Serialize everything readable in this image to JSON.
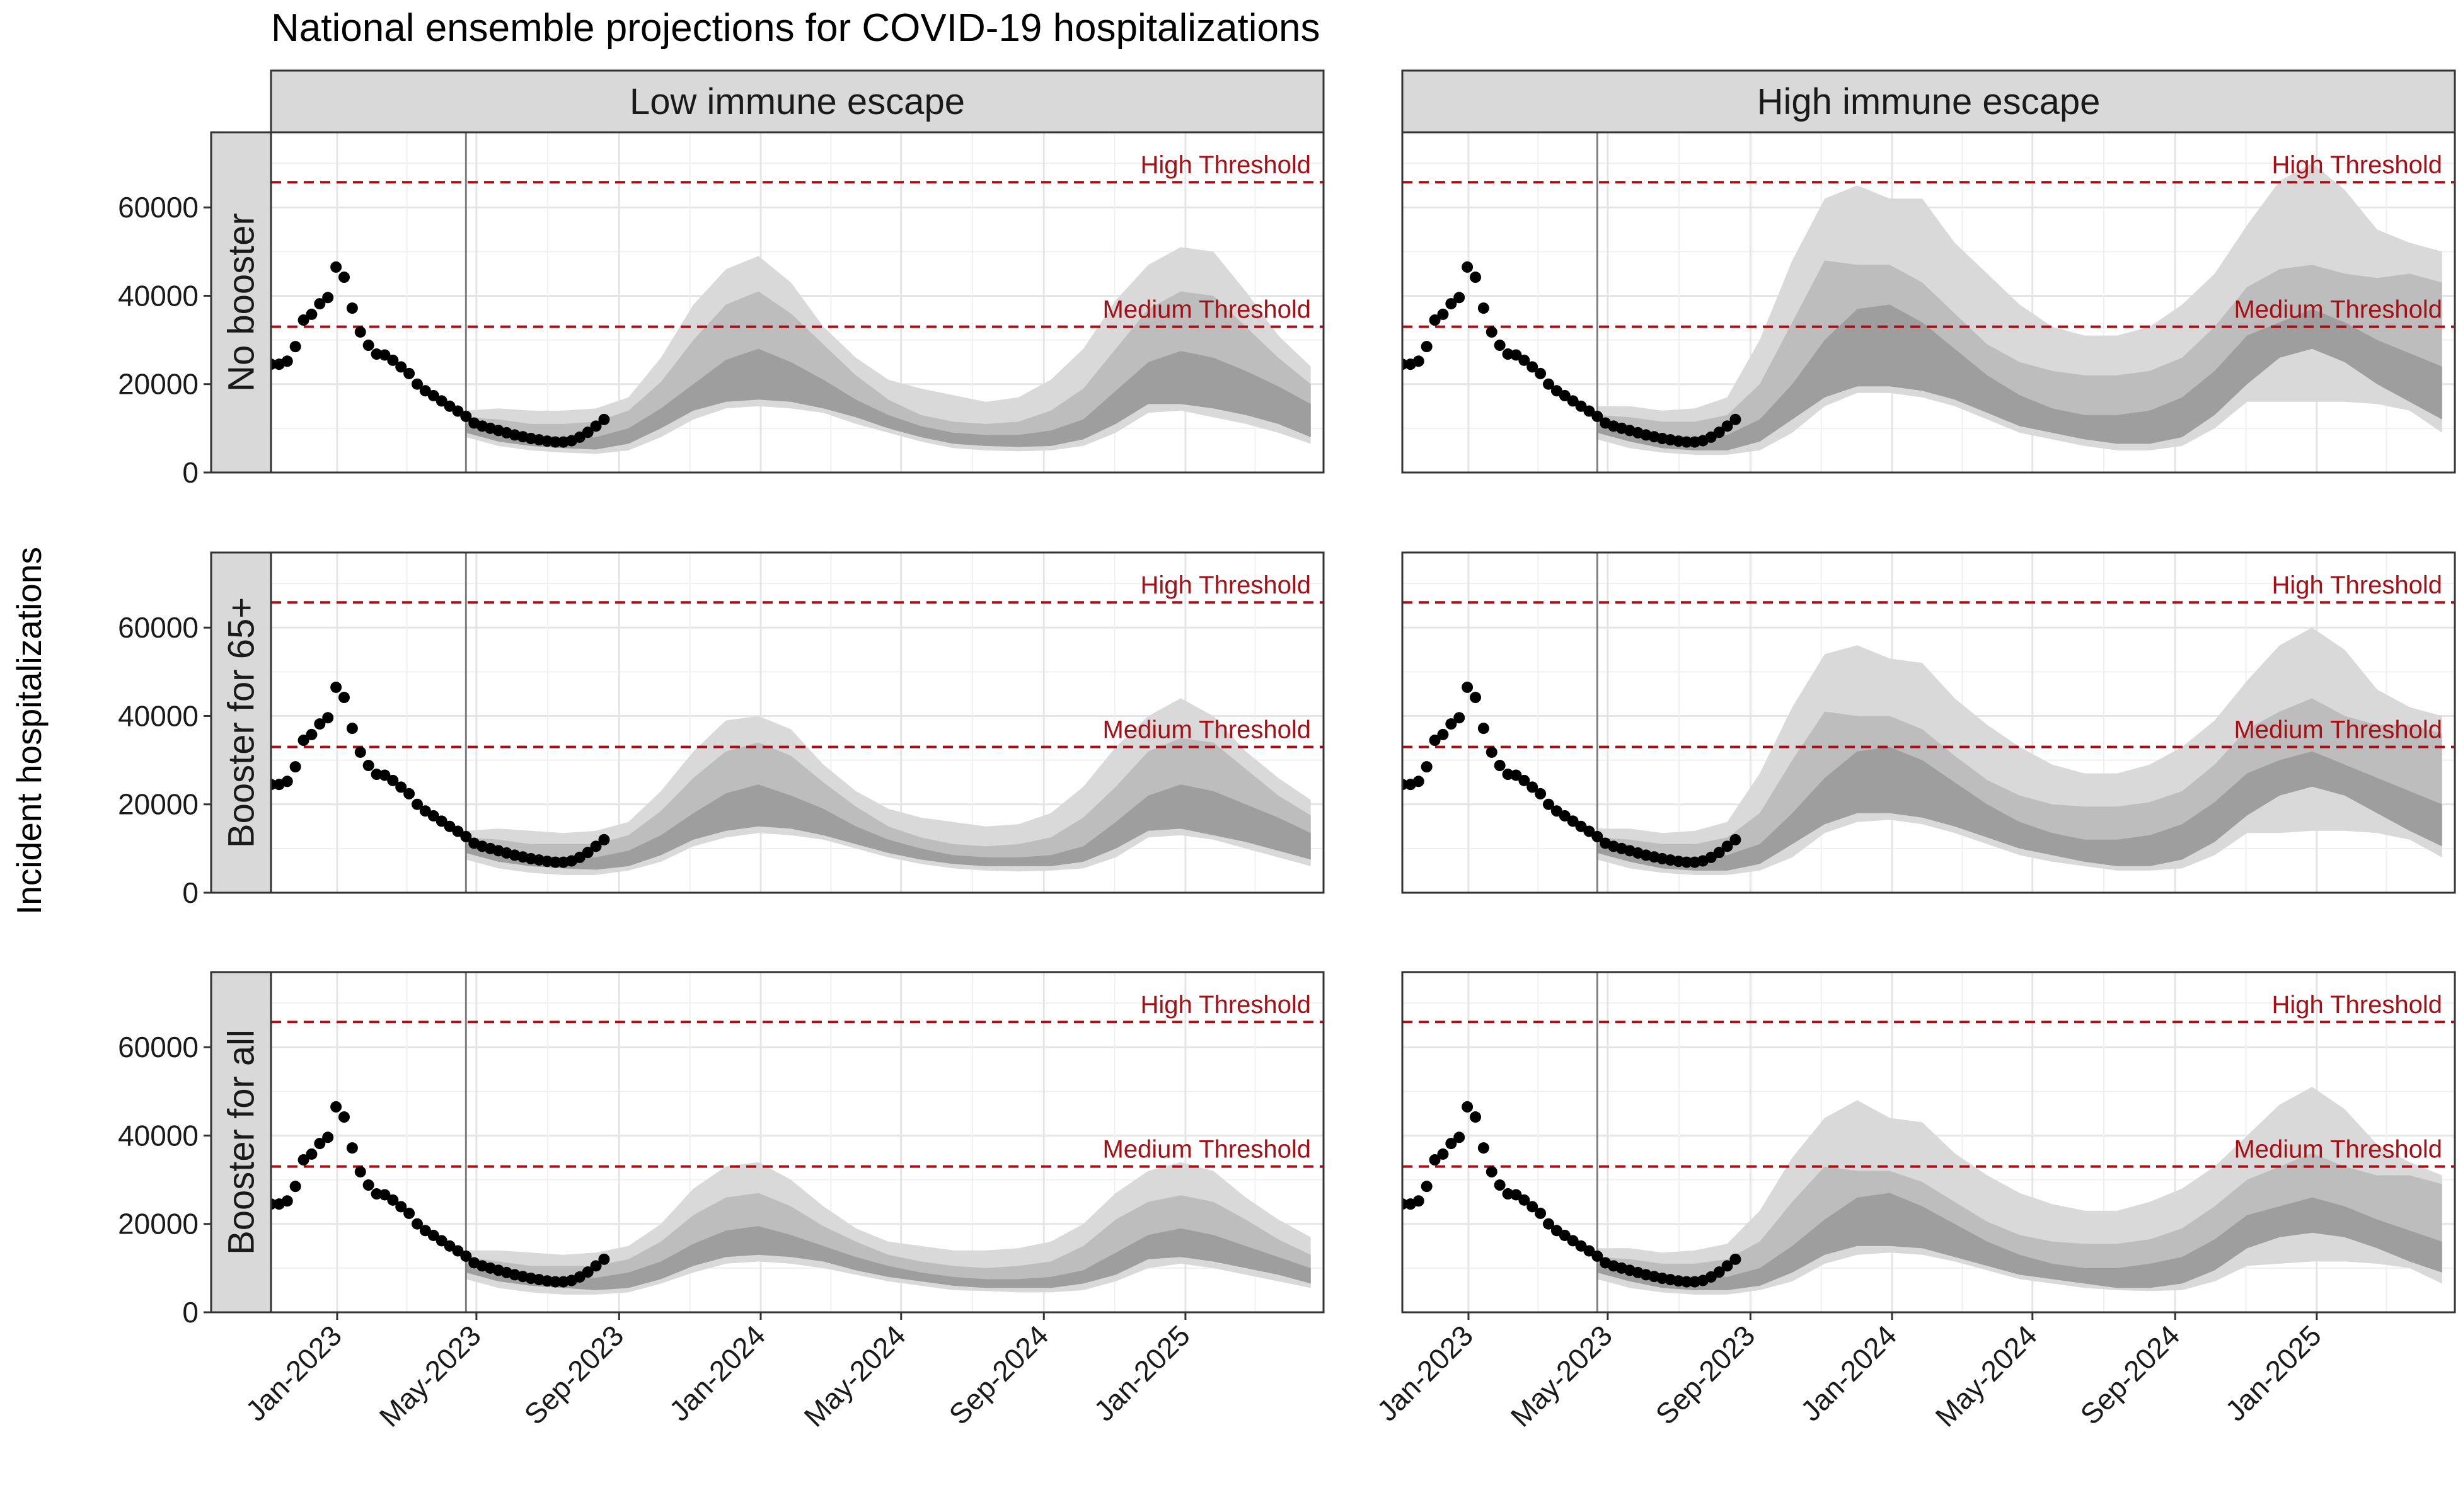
{
  "chart_data": {
    "type": "area",
    "title": "National ensemble projections for COVID-19 hospitalizations",
    "ylabel": "Incident hospitalizations",
    "xlabel": "",
    "facet_columns": [
      "Low immune escape",
      "High immune escape"
    ],
    "facet_rows": [
      "No booster",
      "Booster for 65+",
      "Booster for all"
    ],
    "x_ticks": [
      "Jan-2023",
      "May-2023",
      "Sep-2023",
      "Jan-2024",
      "May-2024",
      "Sep-2024",
      "Jan-2025"
    ],
    "x_tick_dates": [
      "2023-01-01",
      "2023-05-01",
      "2023-09-01",
      "2024-01-01",
      "2024-05-01",
      "2024-09-01",
      "2025-01-01"
    ],
    "xlim": [
      "2022-11-05",
      "2025-04-30"
    ],
    "y_ticks": [
      "0",
      "20000",
      "40000",
      "60000"
    ],
    "ylim": [
      0,
      77000
    ],
    "grid": true,
    "projection_start": "2023-04-22",
    "data_start": "2022-11-05",
    "thresholds": [
      {
        "label": "High Threshold",
        "value": 65700,
        "color": "#a50f15"
      },
      {
        "label": "Medium Threshold",
        "value": 33000,
        "color": "#a50f15"
      }
    ],
    "band_colors": {
      "outer": "#d9d9d9",
      "middle": "#bdbdbd",
      "inner": "#9e9e9e",
      "points": "#000000",
      "projection_line": "#7f7f7f"
    },
    "observed": {
      "dates": [
        "2022-11-05",
        "2022-11-12",
        "2022-11-19",
        "2022-11-26",
        "2022-12-03",
        "2022-12-10",
        "2022-12-17",
        "2022-12-24",
        "2022-12-31",
        "2023-01-07",
        "2023-01-14",
        "2023-01-21",
        "2023-01-28",
        "2023-02-04",
        "2023-02-11",
        "2023-02-18",
        "2023-02-25",
        "2023-03-04",
        "2023-03-11",
        "2023-03-18",
        "2023-03-25",
        "2023-04-01",
        "2023-04-08",
        "2023-04-15",
        "2023-04-22",
        "2023-04-29",
        "2023-05-06",
        "2023-05-13",
        "2023-05-20",
        "2023-05-27",
        "2023-06-03",
        "2023-06-10",
        "2023-06-17",
        "2023-06-24",
        "2023-07-01",
        "2023-07-08",
        "2023-07-15",
        "2023-07-22",
        "2023-07-29",
        "2023-08-05",
        "2023-08-12",
        "2023-08-19"
      ],
      "values": [
        24500,
        24500,
        25200,
        28500,
        34500,
        35800,
        38200,
        39600,
        46500,
        44200,
        37200,
        31800,
        28800,
        26800,
        26600,
        25400,
        23900,
        22400,
        20000,
        18500,
        17400,
        16200,
        15000,
        13900,
        12700,
        11200,
        10500,
        10000,
        9500,
        9000,
        8500,
        8100,
        7700,
        7400,
        7100,
        6900,
        6900,
        7200,
        8000,
        9100,
        10500,
        12000
      ]
    },
    "projection_weeks": [
      "2023-04-22",
      "2023-05-20",
      "2023-06-17",
      "2023-07-15",
      "2023-08-12",
      "2023-09-09",
      "2023-10-07",
      "2023-11-04",
      "2023-12-02",
      "2023-12-30",
      "2024-01-27",
      "2024-02-24",
      "2024-03-23",
      "2024-04-20",
      "2024-05-18",
      "2024-06-15",
      "2024-07-13",
      "2024-08-10",
      "2024-09-07",
      "2024-10-05",
      "2024-11-02",
      "2024-11-30",
      "2024-12-28",
      "2025-01-25",
      "2025-02-22",
      "2025-03-22",
      "2025-04-19"
    ],
    "panels": [
      {
        "row": "No booster",
        "column": "Low immune escape",
        "outer_low": [
          8000,
          6000,
          5000,
          4500,
          4200,
          5000,
          8000,
          12000,
          14500,
          15000,
          14500,
          13500,
          11000,
          9000,
          7000,
          5500,
          5000,
          4800,
          5000,
          6000,
          9000,
          13500,
          14000,
          12500,
          11000,
          9000,
          6500
        ],
        "mid_low": [
          9000,
          7000,
          6000,
          5500,
          5200,
          6500,
          10000,
          14000,
          16000,
          16500,
          16000,
          14500,
          12500,
          10000,
          8000,
          6500,
          6000,
          5800,
          6000,
          7500,
          11000,
          15500,
          15500,
          14500,
          13000,
          11000,
          8000
        ],
        "median": [
          11000,
          9500,
          8500,
          8000,
          8000,
          10000,
          14500,
          20000,
          25500,
          28000,
          25000,
          21000,
          16500,
          13000,
          10500,
          9000,
          8500,
          8500,
          9500,
          12000,
          18500,
          25000,
          27500,
          26000,
          23000,
          19500,
          15500
        ],
        "mid_high": [
          12500,
          12000,
          11000,
          11000,
          11500,
          14000,
          20500,
          30000,
          38000,
          41000,
          36000,
          29000,
          22000,
          16500,
          13000,
          11500,
          11000,
          11500,
          14000,
          19000,
          28000,
          37000,
          41000,
          40000,
          33000,
          26000,
          20000
        ],
        "outer_high": [
          14000,
          14500,
          14000,
          14000,
          14500,
          17000,
          26000,
          38000,
          46000,
          49000,
          43000,
          33000,
          26000,
          21000,
          19000,
          17500,
          16000,
          17000,
          21000,
          28000,
          39000,
          47000,
          51000,
          50000,
          41000,
          31000,
          24000
        ]
      },
      {
        "row": "No booster",
        "column": "High immune escape",
        "outer_low": [
          7500,
          5500,
          4500,
          4000,
          4000,
          5000,
          9000,
          15000,
          18000,
          18000,
          17000,
          15000,
          12000,
          9000,
          7500,
          6000,
          5000,
          5000,
          6000,
          10000,
          16000,
          16000,
          16000,
          16000,
          15500,
          14000,
          9000
        ],
        "mid_low": [
          9000,
          7000,
          5500,
          5000,
          5000,
          7000,
          12000,
          17000,
          19500,
          19500,
          18500,
          16500,
          13500,
          10500,
          9000,
          7500,
          6500,
          6500,
          8000,
          13000,
          20000,
          26000,
          28000,
          25000,
          20000,
          16000,
          12000
        ],
        "median": [
          11000,
          9500,
          8500,
          8000,
          8500,
          12000,
          20000,
          30000,
          37000,
          38000,
          34000,
          28000,
          22000,
          17500,
          14500,
          13000,
          13000,
          14000,
          17000,
          23000,
          31000,
          34000,
          37000,
          34000,
          30000,
          27000,
          24000
        ],
        "mid_high": [
          13000,
          12500,
          11500,
          11500,
          13000,
          20000,
          34000,
          48000,
          47000,
          47000,
          43000,
          36000,
          29000,
          25000,
          23000,
          22000,
          22000,
          23000,
          26000,
          33000,
          42000,
          46000,
          47000,
          45000,
          44000,
          45000,
          43000
        ],
        "outer_high": [
          15000,
          15000,
          14000,
          14500,
          17000,
          30000,
          48000,
          62000,
          65000,
          62000,
          62000,
          52000,
          45000,
          38000,
          33000,
          31000,
          31000,
          33000,
          38000,
          45000,
          56000,
          66000,
          70000,
          64000,
          55000,
          52000,
          50000
        ]
      },
      {
        "row": "Booster for 65+",
        "column": "Low immune escape",
        "outer_low": [
          7500,
          5500,
          4500,
          4000,
          4000,
          5000,
          7000,
          10500,
          12500,
          13500,
          13000,
          12000,
          10000,
          8000,
          6500,
          5500,
          5000,
          4800,
          5000,
          5500,
          8000,
          12500,
          13000,
          12000,
          10000,
          8000,
          6000
        ],
        "mid_low": [
          9000,
          7000,
          6000,
          5500,
          5200,
          6000,
          8500,
          12000,
          14000,
          15000,
          14500,
          13000,
          11000,
          9000,
          7500,
          6500,
          6000,
          6000,
          6000,
          7000,
          10000,
          14000,
          14500,
          13000,
          11500,
          9500,
          7500
        ],
        "median": [
          11000,
          9500,
          8500,
          8000,
          8000,
          9500,
          13000,
          18000,
          22500,
          24500,
          22000,
          19000,
          15000,
          12000,
          10000,
          8500,
          8000,
          8000,
          8500,
          10500,
          16000,
          22000,
          24500,
          23000,
          20000,
          17000,
          13500
        ],
        "mid_high": [
          12500,
          12000,
          11000,
          11000,
          11000,
          13000,
          18500,
          26000,
          32000,
          34000,
          31000,
          25000,
          19500,
          15000,
          12500,
          11000,
          10500,
          11000,
          12500,
          17000,
          24000,
          32000,
          35000,
          34000,
          28000,
          22000,
          17500
        ],
        "outer_high": [
          14000,
          14500,
          14000,
          13500,
          14000,
          16000,
          23000,
          32000,
          39000,
          40000,
          37000,
          29000,
          23000,
          19000,
          17000,
          16000,
          15000,
          15500,
          18000,
          24000,
          33000,
          40000,
          44000,
          40000,
          32000,
          26000,
          21000
        ]
      },
      {
        "row": "Booster for 65+",
        "column": "High immune escape",
        "outer_low": [
          7500,
          5500,
          4500,
          4000,
          4000,
          5000,
          8000,
          13500,
          16000,
          16500,
          15500,
          13500,
          11000,
          8500,
          7000,
          6000,
          5000,
          5000,
          5500,
          8500,
          13500,
          13500,
          14000,
          14000,
          13500,
          12000,
          8000
        ],
        "mid_low": [
          9000,
          7000,
          5500,
          5000,
          5000,
          6500,
          11000,
          15500,
          18000,
          18000,
          17000,
          15000,
          12500,
          10000,
          8500,
          7000,
          6000,
          6000,
          7500,
          11500,
          17500,
          22000,
          24000,
          22000,
          18000,
          14000,
          10500
        ],
        "median": [
          11000,
          9500,
          8500,
          8000,
          8500,
          11000,
          18000,
          26000,
          32000,
          33000,
          30000,
          25000,
          20000,
          16000,
          13500,
          12000,
          12000,
          13000,
          15500,
          20500,
          27000,
          30000,
          32000,
          29000,
          26000,
          23000,
          20000
        ],
        "mid_high": [
          12500,
          12000,
          11000,
          11000,
          12500,
          18000,
          30000,
          41000,
          40000,
          40000,
          37000,
          31000,
          25500,
          22000,
          20000,
          19500,
          19500,
          20500,
          23000,
          29000,
          37000,
          41000,
          44000,
          40000,
          38000,
          38000,
          36000
        ],
        "outer_high": [
          14500,
          14500,
          13500,
          14000,
          16000,
          27000,
          42000,
          54000,
          56000,
          53000,
          52000,
          44000,
          38000,
          33000,
          29000,
          27000,
          27000,
          29000,
          33000,
          39000,
          48000,
          56000,
          60000,
          55000,
          46000,
          42000,
          40000
        ]
      },
      {
        "row": "Booster for all",
        "column": "Low immune escape",
        "outer_low": [
          7500,
          5500,
          4500,
          4000,
          4000,
          4500,
          6500,
          9000,
          11000,
          11500,
          11000,
          10000,
          8500,
          7000,
          6000,
          5000,
          4800,
          4500,
          4500,
          5000,
          7000,
          10000,
          11000,
          10000,
          8500,
          7000,
          5500
        ],
        "mid_low": [
          9000,
          7000,
          6000,
          5500,
          5000,
          5500,
          7500,
          10500,
          12500,
          13000,
          12500,
          11500,
          9500,
          8000,
          7000,
          6000,
          5500,
          5500,
          5500,
          6500,
          8500,
          12000,
          12500,
          11500,
          10000,
          8500,
          6500
        ],
        "median": [
          11000,
          9500,
          8500,
          8000,
          7800,
          9000,
          11500,
          15500,
          18500,
          19500,
          17500,
          15000,
          12500,
          10500,
          9000,
          8000,
          7500,
          7500,
          8000,
          9500,
          13500,
          17500,
          19000,
          17500,
          15000,
          12500,
          10000
        ],
        "mid_high": [
          12500,
          11500,
          10500,
          10500,
          10500,
          12000,
          16000,
          22000,
          26000,
          27000,
          24000,
          19500,
          16000,
          13000,
          11500,
          10500,
          10000,
          10500,
          11500,
          15000,
          21000,
          25000,
          26500,
          25000,
          21000,
          16500,
          13000
        ],
        "outer_high": [
          14000,
          14000,
          13500,
          13000,
          13500,
          15000,
          20000,
          28000,
          33000,
          34000,
          30000,
          24000,
          19000,
          16000,
          15000,
          14000,
          14000,
          14500,
          16000,
          20000,
          27000,
          32000,
          34000,
          32000,
          26000,
          21000,
          17000
        ]
      },
      {
        "row": "Booster for all",
        "column": "High immune escape",
        "outer_low": [
          7500,
          5500,
          4500,
          4000,
          4000,
          5000,
          7000,
          11000,
          13000,
          13500,
          13000,
          11500,
          9500,
          7500,
          6500,
          5500,
          5000,
          4800,
          5000,
          7000,
          10500,
          11000,
          11500,
          11500,
          11000,
          10000,
          6500
        ],
        "mid_low": [
          9000,
          7000,
          5500,
          5000,
          5000,
          6000,
          9000,
          13000,
          15000,
          15000,
          14500,
          12500,
          10500,
          8500,
          7500,
          6500,
          5500,
          5500,
          6500,
          9500,
          14500,
          17000,
          18000,
          17000,
          14500,
          11500,
          9000
        ],
        "median": [
          11000,
          9500,
          8500,
          8000,
          8000,
          10000,
          15000,
          21000,
          26000,
          27000,
          24000,
          20000,
          16000,
          13000,
          11000,
          10000,
          10000,
          11000,
          12500,
          16500,
          22000,
          24000,
          26000,
          24000,
          21000,
          18500,
          16000
        ],
        "mid_high": [
          12500,
          12000,
          11000,
          11000,
          12000,
          16000,
          25000,
          33000,
          32000,
          32000,
          29500,
          25000,
          20500,
          17500,
          16000,
          15500,
          15500,
          16500,
          19000,
          24000,
          30000,
          33000,
          36000,
          33000,
          31000,
          31000,
          29000
        ],
        "outer_high": [
          14500,
          14500,
          13500,
          14000,
          15500,
          23000,
          35000,
          44000,
          48000,
          44000,
          43000,
          36000,
          31000,
          27000,
          24500,
          23000,
          23000,
          25000,
          28000,
          33000,
          40000,
          47000,
          51000,
          46000,
          38000,
          34000,
          31000
        ]
      }
    ]
  }
}
